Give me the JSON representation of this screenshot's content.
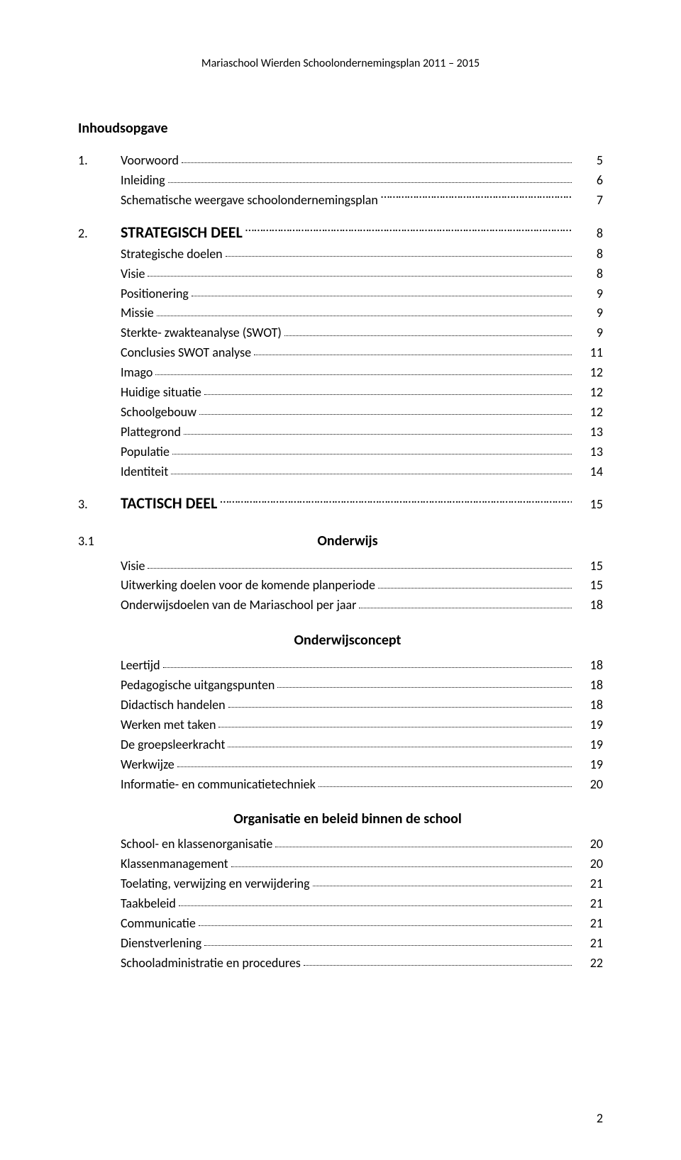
{
  "header": "Mariaschool Wierden Schoolondernemingsplan 2011 – 2015",
  "title": "Inhoudsopgave",
  "pageNumber": "2",
  "sections": [
    {
      "num": "1.",
      "rows": [
        {
          "label": "Voorwoord",
          "page": "5"
        },
        {
          "label": "Inleiding",
          "page": "6"
        },
        {
          "label": "Schematische weergave schoolondernemingsplan",
          "page": "7",
          "dots": "trail"
        }
      ]
    },
    {
      "num": "2.",
      "head": "STRATEGISCH DEEL",
      "headPage": "8",
      "headDots": "trail",
      "rows": [
        {
          "label": "Strategische doelen",
          "page": "8"
        },
        {
          "label": "Visie",
          "page": "8"
        },
        {
          "label": "Positionering",
          "page": "9"
        },
        {
          "label": "Missie",
          "page": "9"
        },
        {
          "label": "Sterkte- zwakteanalyse (SWOT)",
          "page": "9"
        },
        {
          "label": "Conclusies SWOT analyse",
          "page": "11"
        },
        {
          "label": "Imago",
          "page": "12"
        },
        {
          "label": "Huidige situatie",
          "page": "12"
        },
        {
          "label": "Schoolgebouw",
          "page": "12"
        },
        {
          "label": "Plattegrond",
          "page": "13"
        },
        {
          "label": "Populatie",
          "page": "13"
        },
        {
          "label": "Identiteit",
          "page": "14"
        }
      ]
    },
    {
      "num": "3.",
      "head": "TACTISCH DEEL",
      "headPage": "15",
      "headDots": "trail",
      "rows": []
    },
    {
      "num": "3.1",
      "subheading": "Onderwijs",
      "rows": [
        {
          "label": "Visie",
          "page": "15"
        },
        {
          "label": "Uitwerking doelen voor de komende planperiode",
          "page": "15"
        },
        {
          "label": "Onderwijsdoelen van de Mariaschool per jaar",
          "page": "18"
        }
      ]
    },
    {
      "subheading": "Onderwijsconcept",
      "rows": [
        {
          "label": "Leertijd",
          "page": "18"
        },
        {
          "label": "Pedagogische uitgangspunten",
          "page": "18"
        },
        {
          "label": "Didactisch handelen",
          "page": "18"
        },
        {
          "label": "Werken met taken",
          "page": "19"
        },
        {
          "label": "De groepsleerkracht",
          "page": "19"
        },
        {
          "label": "Werkwijze",
          "page": "19"
        },
        {
          "label": "Informatie- en communicatietechniek",
          "page": "20"
        }
      ]
    },
    {
      "subheading": "Organisatie en beleid binnen de school",
      "rows": [
        {
          "label": "School- en klassenorganisatie",
          "page": "20"
        },
        {
          "label": "Klassenmanagement",
          "page": "20"
        },
        {
          "label": "Toelating, verwijzing  en verwijdering",
          "page": "21"
        },
        {
          "label": "Taakbeleid",
          "page": "21"
        },
        {
          "label": "Communicatie",
          "page": "21"
        },
        {
          "label": "Dienstverlening",
          "page": "21"
        },
        {
          "label": "Schooladministratie en procedures",
          "page": "22"
        }
      ]
    }
  ]
}
